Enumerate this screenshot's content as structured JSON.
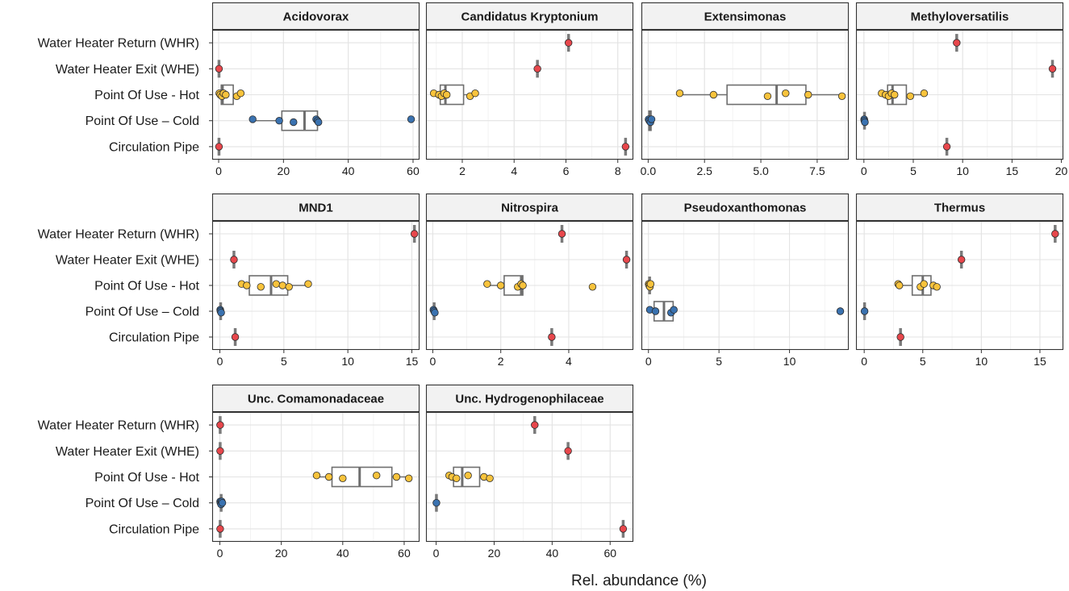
{
  "chart_data": {
    "type": "boxplot",
    "xlabel": "Rel. abundance (%)",
    "ylabel": "",
    "categories": [
      "Water Heater Return (WHR)",
      "Water Heater Exit (WHE)",
      "Point Of Use - Hot",
      "Point Of Use – Cold",
      "Circulation Pipe"
    ],
    "colors": {
      "Water Heater Return (WHR)": "#e8474c",
      "Water Heater Exit (WHE)": "#e8474c",
      "Point Of Use - Hot": "#f8c33c",
      "Point Of Use – Cold": "#3a72b0",
      "Circulation Pipe": "#e8474c"
    },
    "panels": [
      {
        "title": "Acidovorax",
        "xlim": [
          -2,
          62
        ],
        "xticks": [
          0,
          20,
          40,
          60
        ],
        "tick_labels": [
          "0",
          "20",
          "40",
          "60"
        ],
        "data": {
          "Water Heater Return (WHR)": [],
          "Water Heater Exit (WHE)": [
            0.1
          ],
          "Point Of Use - Hot": [
            0.2,
            0.5,
            1.0,
            1.5,
            2.2,
            5.6,
            6.8
          ],
          "Point Of Use – Cold": [
            10.5,
            18.7,
            23.1,
            30.1,
            30.5,
            30.8,
            59.4
          ],
          "Circulation Pipe": [
            0.1
          ]
        },
        "boxes": {
          "Point Of Use - Hot": {
            "q1": 0.8,
            "median": 1.2,
            "q3": 4.5,
            "wlo": 0.2,
            "whi": 6.8
          },
          "Point Of Use – Cold": {
            "q1": 19.5,
            "median": 26.5,
            "q3": 30.5,
            "wlo": 10.5,
            "whi": 30.8
          }
        }
      },
      {
        "title": "Candidatus Kryptonium",
        "xlim": [
          0.6,
          8.6
        ],
        "xticks": [
          2,
          4,
          6,
          8
        ],
        "tick_labels": [
          "2",
          "4",
          "6",
          "8"
        ],
        "data": {
          "Water Heater Return (WHR)": [
            6.1
          ],
          "Water Heater Exit (WHE)": [
            4.9
          ],
          "Point Of Use - Hot": [
            0.9,
            1.1,
            1.2,
            1.3,
            1.4,
            2.3,
            2.5
          ],
          "Point Of Use – Cold": [],
          "Circulation Pipe": [
            8.3
          ]
        },
        "boxes": {
          "Point Of Use - Hot": {
            "q1": 1.15,
            "median": 1.35,
            "q3": 2.05,
            "wlo": 0.9,
            "whi": 2.5
          }
        }
      },
      {
        "title": "Extensimonas",
        "xlim": [
          -0.3,
          8.9
        ],
        "xticks": [
          0,
          2.5,
          5,
          7.5
        ],
        "tick_labels": [
          "0.0",
          "2.5",
          "5.0",
          "7.5"
        ],
        "data": {
          "Water Heater Return (WHR)": [],
          "Water Heater Exit (WHE)": [],
          "Point Of Use - Hot": [
            1.4,
            2.9,
            5.3,
            6.1,
            7.1,
            8.6
          ],
          "Point Of Use – Cold": [
            0.02,
            0.05,
            0.1,
            0.15
          ],
          "Circulation Pipe": []
        },
        "boxes": {
          "Point Of Use - Hot": {
            "q1": 3.5,
            "median": 5.7,
            "q3": 7.0,
            "wlo": 1.4,
            "whi": 8.6
          },
          "Point Of Use – Cold": {
            "q1": 0.03,
            "median": 0.08,
            "q3": 0.13,
            "wlo": 0.02,
            "whi": 0.15
          }
        }
      },
      {
        "title": "Methyloversatilis",
        "xlim": [
          -0.8,
          20.2
        ],
        "xticks": [
          0,
          5,
          10,
          15,
          20
        ],
        "tick_labels": [
          "0",
          "5",
          "10",
          "15",
          "20"
        ],
        "data": {
          "Water Heater Return (WHR)": [
            9.4
          ],
          "Water Heater Exit (WHE)": [
            19.1
          ],
          "Point Of Use - Hot": [
            1.8,
            2.2,
            2.5,
            2.8,
            3.1,
            4.7,
            6.1
          ],
          "Point Of Use – Cold": [
            0.03,
            0.05,
            0.1
          ],
          "Circulation Pipe": [
            8.4
          ]
        },
        "boxes": {
          "Point Of Use - Hot": {
            "q1": 2.4,
            "median": 2.9,
            "q3": 4.3,
            "wlo": 1.8,
            "whi": 6.1
          }
        }
      },
      {
        "title": "MND1",
        "xlim": [
          -0.6,
          15.6
        ],
        "xticks": [
          0,
          5,
          10,
          15
        ],
        "tick_labels": [
          "0",
          "5",
          "10",
          "15"
        ],
        "data": {
          "Water Heater Return (WHR)": [
            15.2
          ],
          "Water Heater Exit (WHE)": [
            1.1
          ],
          "Point Of Use - Hot": [
            1.7,
            2.1,
            3.2,
            4.4,
            4.9,
            5.4,
            6.9
          ],
          "Point Of Use – Cold": [
            0.03,
            0.05,
            0.1
          ],
          "Circulation Pipe": [
            1.2
          ]
        },
        "boxes": {
          "Point Of Use - Hot": {
            "q1": 2.3,
            "median": 4.0,
            "q3": 5.3,
            "wlo": 1.7,
            "whi": 6.9
          }
        }
      },
      {
        "title": "Nitrospira",
        "xlim": [
          -0.2,
          5.9
        ],
        "xticks": [
          0,
          2,
          4
        ],
        "tick_labels": [
          "0",
          "2",
          "4"
        ],
        "data": {
          "Water Heater Return (WHR)": [
            3.8
          ],
          "Water Heater Exit (WHE)": [
            5.7
          ],
          "Point Of Use - Hot": [
            1.6,
            2.0,
            2.5,
            2.6,
            2.65,
            4.7
          ],
          "Point Of Use – Cold": [
            0.02,
            0.04,
            0.06
          ],
          "Circulation Pipe": [
            3.5
          ]
        },
        "boxes": {
          "Point Of Use - Hot": {
            "q1": 2.1,
            "median": 2.6,
            "q3": 2.65,
            "wlo": 1.6,
            "whi": 2.65
          }
        }
      },
      {
        "title": "Pseudoxanthomonas",
        "xlim": [
          -0.5,
          14.2
        ],
        "xticks": [
          0,
          5,
          10
        ],
        "tick_labels": [
          "0",
          "5",
          "10"
        ],
        "data": {
          "Water Heater Return (WHR)": [],
          "Water Heater Exit (WHE)": [],
          "Point Of Use - Hot": [
            0.02,
            0.05,
            0.1,
            0.15
          ],
          "Point Of Use – Cold": [
            0.1,
            0.5,
            1.6,
            1.8,
            13.6
          ],
          "Circulation Pipe": []
        },
        "boxes": {
          "Point Of Use – Cold": {
            "q1": 0.4,
            "median": 1.1,
            "q3": 1.75,
            "wlo": 0.1,
            "whi": 1.8
          }
        }
      },
      {
        "title": "Thermus",
        "xlim": [
          -0.7,
          17.0
        ],
        "xticks": [
          0,
          5,
          10,
          15
        ],
        "tick_labels": [
          "0",
          "5",
          "10",
          "15"
        ],
        "data": {
          "Water Heater Return (WHR)": [
            16.3
          ],
          "Water Heater Exit (WHE)": [
            8.3
          ],
          "Point Of Use - Hot": [
            2.9,
            3.0,
            4.8,
            5.1,
            5.9,
            6.2
          ],
          "Point Of Use – Cold": [
            0.03
          ],
          "Circulation Pipe": [
            3.1
          ]
        },
        "boxes": {
          "Point Of Use - Hot": {
            "q1": 4.1,
            "median": 5.0,
            "q3": 5.7,
            "wlo": 2.9,
            "whi": 6.2
          }
        }
      },
      {
        "title": "Unc. Comamonadaceae",
        "xlim": [
          -2.5,
          65.0
        ],
        "xticks": [
          0,
          20,
          40,
          60
        ],
        "tick_labels": [
          "0",
          "20",
          "40",
          "60"
        ],
        "data": {
          "Water Heater Return (WHR)": [
            0.1
          ],
          "Water Heater Exit (WHE)": [
            0.1
          ],
          "Point Of Use - Hot": [
            31.5,
            35.5,
            40.0,
            51.0,
            57.5,
            61.5
          ],
          "Point Of Use – Cold": [
            0.1,
            0.2,
            0.4,
            0.6,
            0.8
          ],
          "Circulation Pipe": [
            0.1
          ]
        },
        "boxes": {
          "Point Of Use - Hot": {
            "q1": 36.5,
            "median": 45.5,
            "q3": 56.0,
            "wlo": 31.5,
            "whi": 61.5
          }
        }
      },
      {
        "title": "Unc. Hydrogenophilaceae",
        "xlim": [
          -3.5,
          68.0
        ],
        "xticks": [
          0,
          20,
          40,
          60
        ],
        "tick_labels": [
          "0",
          "20",
          "40",
          "60"
        ],
        "data": {
          "Water Heater Return (WHR)": [
            34.0
          ],
          "Water Heater Exit (WHE)": [
            45.5
          ],
          "Point Of Use - Hot": [
            4.5,
            5.5,
            7.0,
            11.0,
            16.5,
            18.5
          ],
          "Point Of Use – Cold": [
            0.1
          ],
          "Circulation Pipe": [
            64.5
          ]
        },
        "boxes": {
          "Point Of Use - Hot": {
            "q1": 6.0,
            "median": 9.0,
            "q3": 15.0,
            "wlo": 4.5,
            "whi": 18.5
          }
        }
      }
    ]
  }
}
